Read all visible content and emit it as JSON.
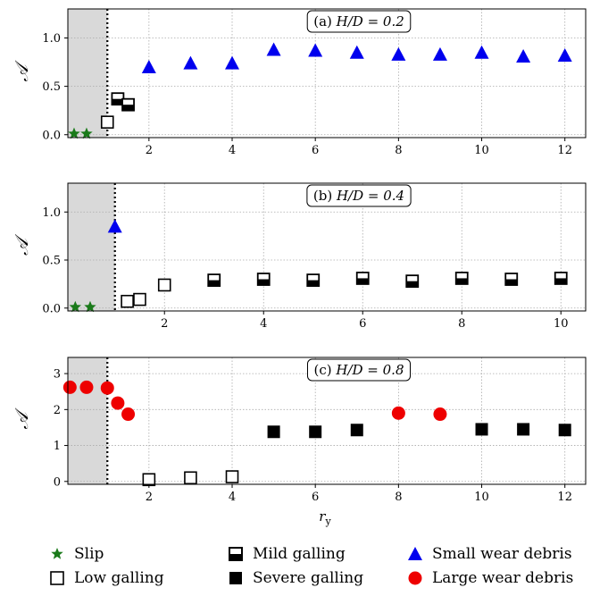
{
  "chart_data": [
    {
      "type": "scatter",
      "panel_label": "(a) ",
      "panel_ratio": "H/D = 0.2",
      "ylabel": "𝒜",
      "xlim": [
        0.05,
        12.5
      ],
      "ylim": [
        -0.03,
        1.3
      ],
      "xticks": [
        2,
        4,
        6,
        8,
        10,
        12
      ],
      "yticks": [
        0.0,
        0.5,
        1.0
      ],
      "ytick_labels": [
        "0.0",
        "0.5",
        "1.0"
      ],
      "shaded_region": [
        0.05,
        1.0
      ],
      "vline": 1.0,
      "grid": true,
      "series": [
        {
          "type": "slip",
          "x": [
            0.2,
            0.5
          ],
          "y": [
            0.01,
            0.01
          ]
        },
        {
          "type": "low",
          "x": [
            1.0
          ],
          "y": [
            0.13
          ]
        },
        {
          "type": "mild",
          "x": [
            1.25,
            1.5
          ],
          "y": [
            0.37,
            0.31
          ]
        },
        {
          "type": "small",
          "x": [
            2,
            3,
            4,
            5,
            6,
            7,
            8,
            9,
            10,
            11,
            12
          ],
          "y": [
            0.7,
            0.74,
            0.74,
            0.88,
            0.87,
            0.85,
            0.83,
            0.83,
            0.85,
            0.81,
            0.82
          ]
        }
      ]
    },
    {
      "type": "scatter",
      "panel_label": "(b) ",
      "panel_ratio": "H/D = 0.4",
      "ylabel": "𝒜",
      "xlim": [
        0.05,
        10.5
      ],
      "ylim": [
        -0.03,
        1.3
      ],
      "xticks": [
        2,
        4,
        6,
        8,
        10
      ],
      "yticks": [
        0.0,
        0.5,
        1.0
      ],
      "ytick_labels": [
        "0.0",
        "0.5",
        "1.0"
      ],
      "shaded_region": [
        0.05,
        1.0
      ],
      "vline": 1.0,
      "grid": true,
      "series": [
        {
          "type": "slip",
          "x": [
            0.2,
            0.5
          ],
          "y": [
            0.01,
            0.01
          ]
        },
        {
          "type": "small",
          "x": [
            1.0
          ],
          "y": [
            0.85
          ]
        },
        {
          "type": "low",
          "x": [
            1.25,
            1.5,
            2.0
          ],
          "y": [
            0.07,
            0.09,
            0.24
          ]
        },
        {
          "type": "mild",
          "x": [
            3,
            4,
            5,
            6,
            7,
            8,
            9,
            10
          ],
          "y": [
            0.29,
            0.3,
            0.29,
            0.31,
            0.28,
            0.31,
            0.3,
            0.31
          ]
        }
      ]
    },
    {
      "type": "scatter",
      "panel_label": "(c) ",
      "panel_ratio": "H/D = 0.8",
      "ylabel": "𝒜",
      "xlabel": "r",
      "xlabel_sub": "y",
      "xlim": [
        0.05,
        12.5
      ],
      "ylim": [
        -0.08,
        3.45
      ],
      "xticks": [
        2,
        4,
        6,
        8,
        10,
        12
      ],
      "yticks": [
        0,
        1,
        2,
        3
      ],
      "ytick_labels": [
        "0",
        "1",
        "2",
        "3"
      ],
      "shaded_region": [
        0.05,
        1.0
      ],
      "vline": 1.0,
      "grid": true,
      "series": [
        {
          "type": "large",
          "x": [
            0.1,
            0.5,
            1.0,
            1.25,
            1.5,
            8,
            9
          ],
          "y": [
            2.62,
            2.62,
            2.6,
            2.18,
            1.87,
            1.9,
            1.87
          ]
        },
        {
          "type": "low",
          "x": [
            2,
            3,
            4
          ],
          "y": [
            0.05,
            0.1,
            0.13
          ]
        },
        {
          "type": "severe",
          "x": [
            5,
            6,
            7,
            10,
            11,
            12
          ],
          "y": [
            1.38,
            1.38,
            1.43,
            1.45,
            1.45,
            1.43
          ]
        }
      ]
    }
  ],
  "legend": [
    {
      "key": "slip",
      "label": "Slip"
    },
    {
      "key": "mild",
      "label": "Mild galling"
    },
    {
      "key": "small",
      "label": "Small wear debris"
    },
    {
      "key": "low",
      "label": "Low galling"
    },
    {
      "key": "severe",
      "label": "Severe galling"
    },
    {
      "key": "large",
      "label": "Large wear debris"
    }
  ],
  "colors": {
    "slip": "#1a7a1a",
    "small": "#0000ee",
    "large": "#ee0000",
    "marker_dark": "#000000",
    "shade": "#d9d9d9",
    "grid": "#aaaaaa"
  }
}
